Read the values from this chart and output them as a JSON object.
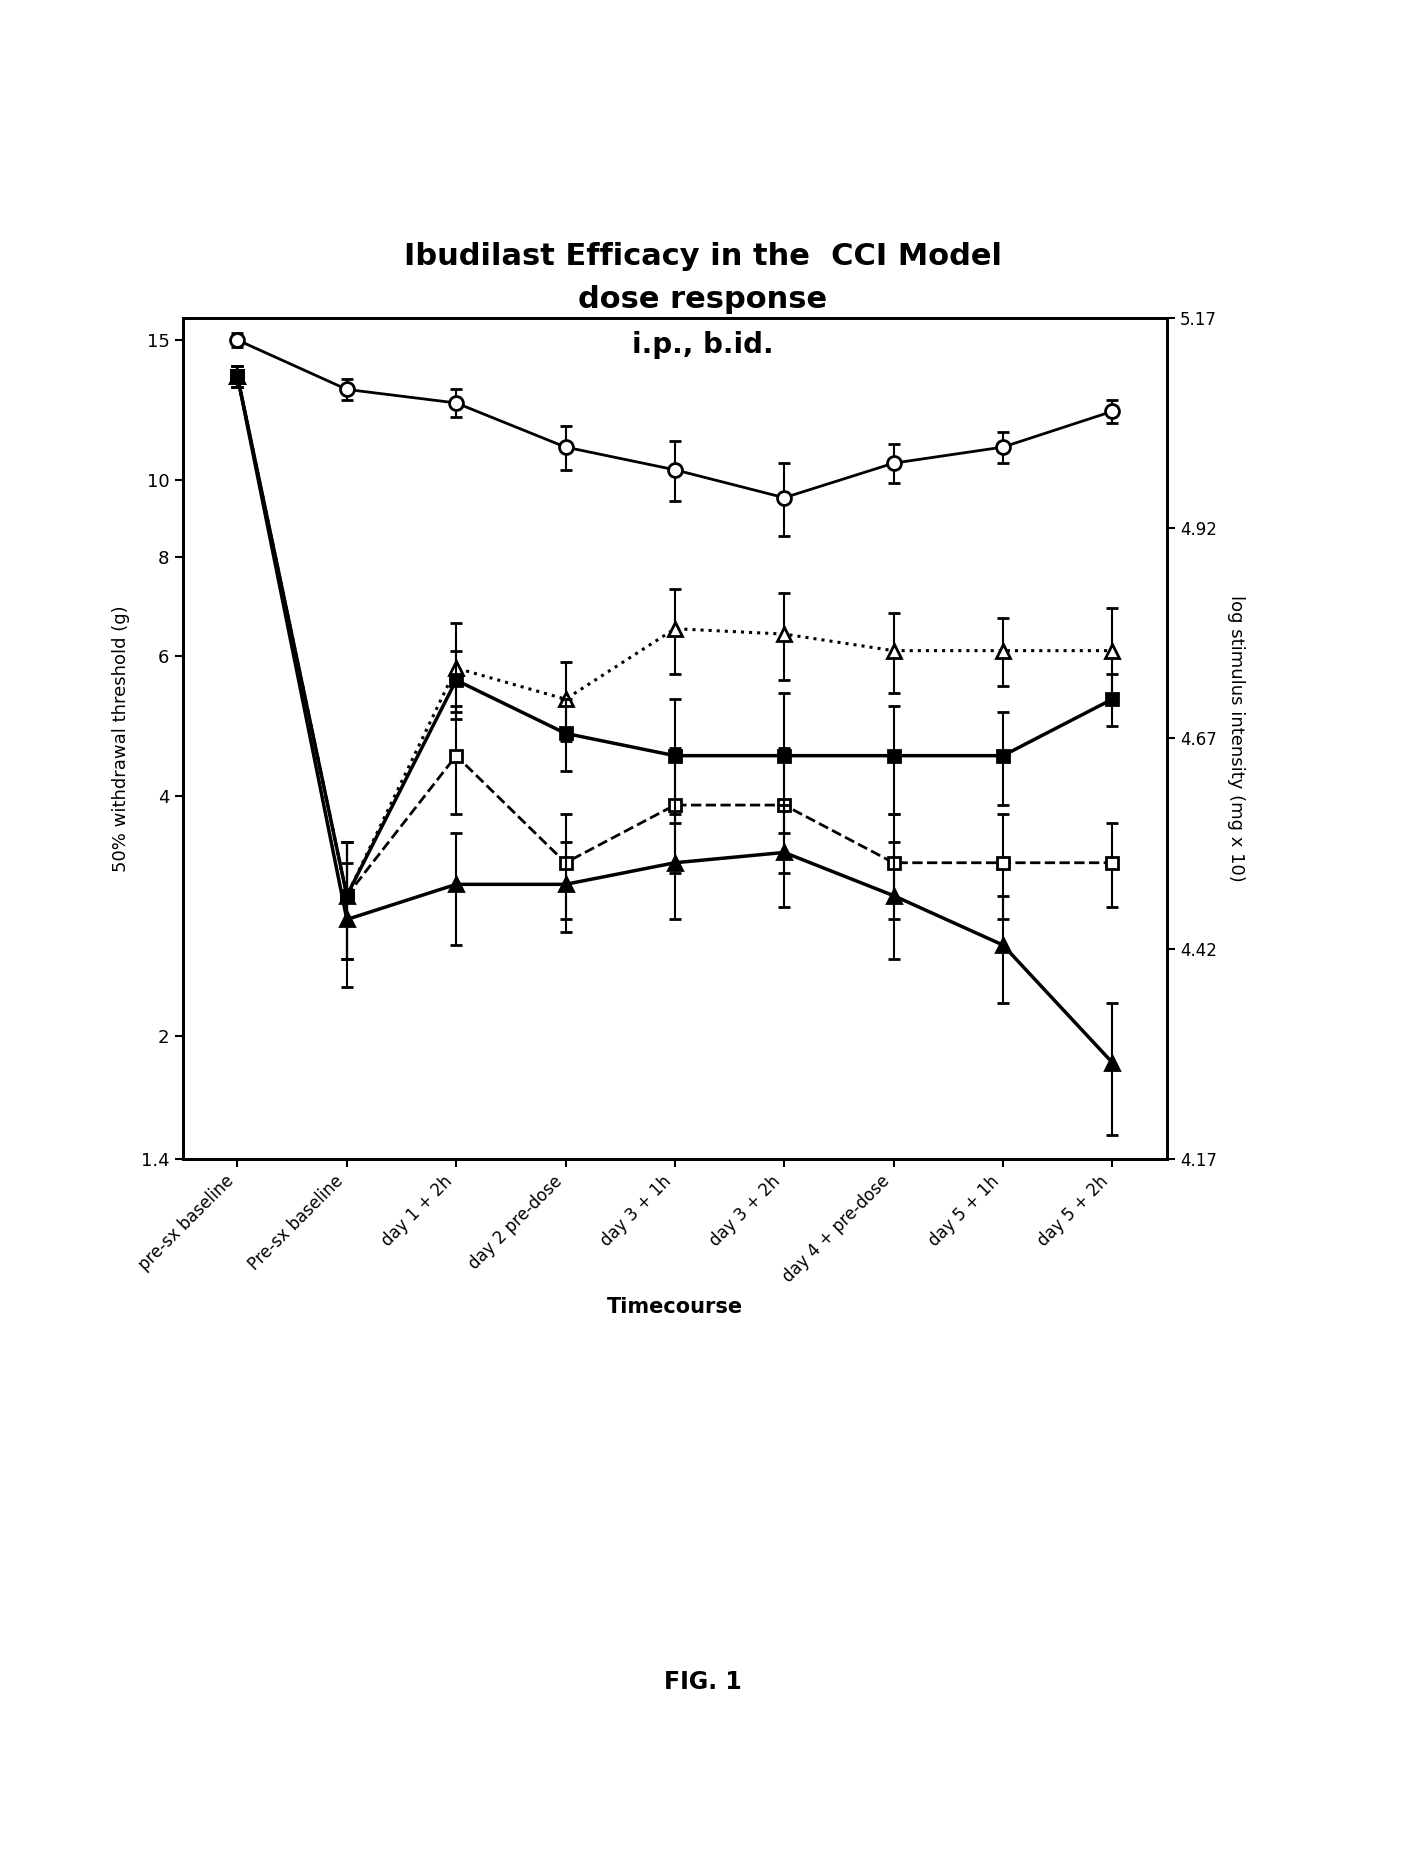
{
  "title_line1": "Ibudilast Efficacy in the  CCI Model",
  "title_line2": "dose response",
  "title_line3": "i.p., b.id.",
  "xlabel": "Timecourse",
  "ylabel_left": "50% withdrawal threshold (g)",
  "ylabel_right": "log stimulus intensity (mg x 10)",
  "x_labels": [
    "pre-sx baseline",
    "Pre-sx baseline",
    "day 1 + 2h",
    "day 2 pre-dose",
    "day 3 + 1h",
    "day 3 + 2h",
    "day 4 + pre-dose",
    "day 5 + 1h",
    "day 5 + 2h"
  ],
  "ylim_left": [
    1.4,
    16.0
  ],
  "yticks_left": [
    2,
    4,
    6,
    8,
    10,
    15
  ],
  "right_yticks": [
    4.17,
    4.42,
    4.67,
    4.92,
    5.17
  ],
  "series": {
    "circle_open": {
      "y": [
        15.0,
        13.0,
        12.5,
        11.0,
        10.3,
        9.5,
        10.5,
        11.0,
        12.2
      ],
      "yerr": [
        0.3,
        0.4,
        0.5,
        0.7,
        0.9,
        1.0,
        0.6,
        0.5,
        0.4
      ],
      "style": "solid",
      "marker": "o",
      "linewidth": 2.0
    },
    "triangle_open_dotted": {
      "y": [
        13.5,
        3.0,
        5.8,
        5.3,
        6.5,
        6.4,
        6.1,
        6.1,
        6.1
      ],
      "yerr": [
        0.4,
        0.5,
        0.8,
        0.6,
        0.8,
        0.8,
        0.7,
        0.6,
        0.8
      ],
      "style": "dotted",
      "marker": "^",
      "linewidth": 2.2
    },
    "square_open_dashed": {
      "y": [
        13.5,
        3.0,
        4.5,
        3.3,
        3.9,
        3.9,
        3.3,
        3.3,
        3.3
      ],
      "yerr": [
        0.4,
        0.5,
        0.7,
        0.5,
        0.7,
        0.7,
        0.5,
        0.5,
        0.4
      ],
      "style": "dashed",
      "marker": "s",
      "linewidth": 2.0
    },
    "square_filled_solid": {
      "y": [
        13.5,
        3.0,
        5.6,
        4.8,
        4.5,
        4.5,
        4.5,
        4.5,
        5.3
      ],
      "yerr": [
        0.4,
        0.5,
        0.5,
        0.5,
        0.8,
        0.9,
        0.7,
        0.6,
        0.4
      ],
      "style": "solid",
      "marker": "s",
      "linewidth": 2.5
    },
    "triangle_filled_solid": {
      "y": [
        13.5,
        2.8,
        3.1,
        3.1,
        3.3,
        3.4,
        3.0,
        2.6,
        1.85
      ],
      "yerr": [
        0.4,
        0.5,
        0.5,
        0.4,
        0.5,
        0.5,
        0.5,
        0.4,
        0.35
      ],
      "style": "solid",
      "marker": "^",
      "linewidth": 2.5
    }
  },
  "fig_width": 14.06,
  "fig_height": 18.69,
  "dpi": 100
}
